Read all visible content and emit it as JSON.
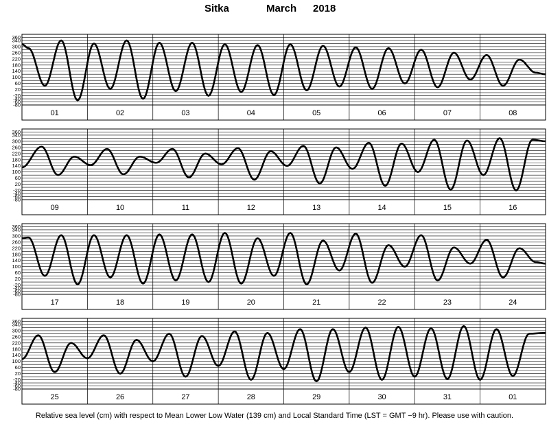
{
  "title": {
    "station": "Sitka",
    "month": "March",
    "year": "2018"
  },
  "caption": "Relative sea level (cm) with respect to Mean Lower Low Water (139 cm) and Local Standard Time (LST = GMT −9 hr). Please use with caution.",
  "chart_data": {
    "type": "line",
    "xlabel": "",
    "ylabel": "",
    "ylim": [
      -80,
      380
    ],
    "yticks": [
      360,
      340,
      300,
      260,
      220,
      180,
      140,
      100,
      60,
      20,
      -20,
      -40,
      -60,
      -80
    ],
    "grid": true,
    "line_color": "#000000",
    "panels": [
      {
        "days": [
          "01",
          "02",
          "03",
          "04",
          "05",
          "06",
          "07",
          "08"
        ],
        "series": [
          {
            "x": [
              0.0,
              0.1,
              0.35,
              0.6,
              0.85,
              1.1,
              1.35,
              1.6,
              1.85,
              2.1,
              2.35,
              2.6,
              2.85,
              3.1,
              3.35,
              3.6,
              3.85,
              4.1,
              4.35,
              4.6,
              4.85,
              5.1,
              5.35,
              5.6,
              5.85,
              6.1,
              6.35,
              6.6,
              6.85,
              7.1,
              7.35,
              7.6,
              7.85,
              8.0
            ],
            "y": [
              315,
              290,
              45,
              340,
              -50,
              320,
              25,
              340,
              -40,
              325,
              10,
              325,
              -20,
              315,
              5,
              310,
              -15,
              315,
              15,
              305,
              40,
              295,
              25,
              290,
              60,
              280,
              35,
              260,
              85,
              245,
              45,
              215,
              130,
              120
            ]
          }
        ]
      },
      {
        "days": [
          "09",
          "10",
          "11",
          "12",
          "13",
          "14",
          "15",
          "16"
        ],
        "series": [
          {
            "x": [
              0.0,
              0.3,
              0.55,
              0.8,
              1.05,
              1.3,
              1.55,
              1.8,
              2.05,
              2.3,
              2.55,
              2.8,
              3.05,
              3.3,
              3.55,
              3.8,
              4.05,
              4.3,
              4.55,
              4.8,
              5.05,
              5.3,
              5.55,
              5.8,
              6.05,
              6.3,
              6.55,
              6.8,
              7.05,
              7.3,
              7.55,
              7.8,
              8.0
            ],
            "y": [
              130,
              265,
              80,
              200,
              145,
              250,
              85,
              200,
              160,
              250,
              65,
              220,
              150,
              255,
              50,
              235,
              140,
              270,
              25,
              260,
              120,
              290,
              10,
              285,
              100,
              310,
              -15,
              305,
              80,
              320,
              -20,
              310,
              300
            ]
          }
        ]
      },
      {
        "days": [
          "17",
          "18",
          "19",
          "20",
          "21",
          "22",
          "23",
          "24"
        ],
        "series": [
          {
            "x": [
              0.0,
              0.1,
              0.35,
              0.6,
              0.85,
              1.1,
              1.35,
              1.6,
              1.85,
              2.1,
              2.35,
              2.6,
              2.85,
              3.1,
              3.35,
              3.6,
              3.85,
              4.1,
              4.35,
              4.6,
              4.85,
              5.1,
              5.35,
              5.6,
              5.85,
              6.1,
              6.35,
              6.6,
              6.85,
              7.1,
              7.35,
              7.6,
              7.85,
              8.0
            ],
            "y": [
              285,
              290,
              40,
              305,
              -15,
              305,
              30,
              305,
              -10,
              310,
              10,
              310,
              0,
              320,
              -10,
              285,
              40,
              320,
              -15,
              270,
              75,
              315,
              -5,
              240,
              100,
              305,
              10,
              225,
              120,
              275,
              30,
              220,
              130,
              120
            ]
          }
        ]
      },
      {
        "days": [
          "25",
          "26",
          "27",
          "28",
          "29",
          "30",
          "31",
          "01"
        ],
        "series": [
          {
            "x": [
              0.0,
              0.25,
              0.5,
              0.75,
              1.0,
              1.25,
              1.5,
              1.75,
              2.0,
              2.25,
              2.5,
              2.75,
              3.0,
              3.25,
              3.5,
              3.75,
              4.0,
              4.25,
              4.5,
              4.75,
              5.0,
              5.25,
              5.5,
              5.75,
              6.0,
              6.25,
              6.5,
              6.75,
              7.0,
              7.25,
              7.5,
              7.75,
              8.0
            ],
            "y": [
              115,
              270,
              30,
              220,
              120,
              270,
              20,
              240,
              100,
              280,
              0,
              265,
              70,
              295,
              -20,
              285,
              50,
              310,
              -30,
              310,
              30,
              320,
              -20,
              325,
              0,
              315,
              -15,
              330,
              -20,
              310,
              5,
              280,
              285
            ]
          }
        ]
      }
    ]
  }
}
